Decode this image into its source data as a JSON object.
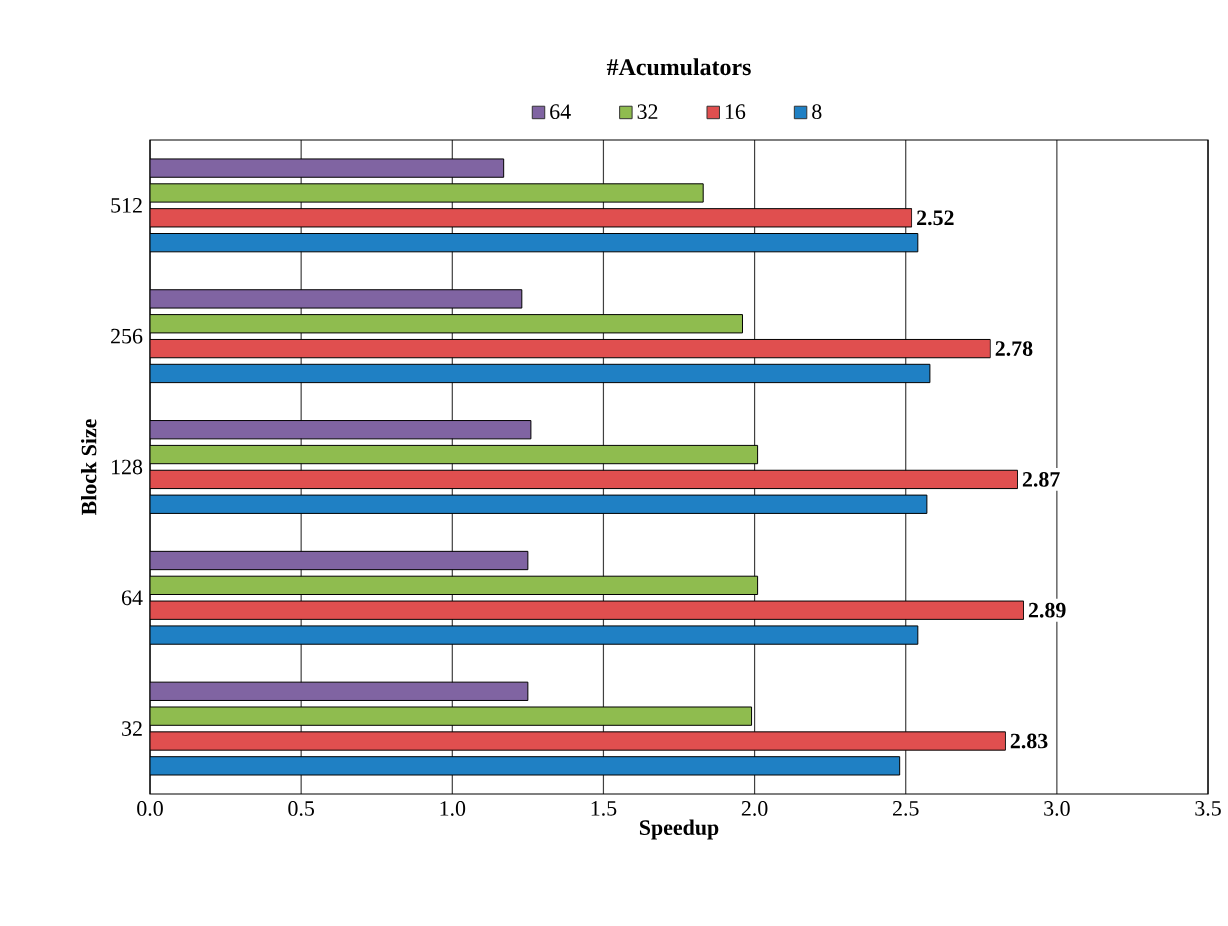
{
  "chart_data": {
    "type": "bar",
    "orientation": "horizontal",
    "legend_title": "#Acumulators",
    "xlabel": "Speedup",
    "ylabel": "Block Size",
    "categories": [
      "512",
      "256",
      "128",
      "64",
      "32"
    ],
    "series": [
      {
        "name": "64",
        "color": "#8064a2",
        "values": [
          1.17,
          1.23,
          1.26,
          1.25,
          1.25
        ]
      },
      {
        "name": "32",
        "color": "#8fbc4f",
        "values": [
          1.83,
          1.96,
          2.01,
          2.01,
          1.99
        ]
      },
      {
        "name": "16",
        "color": "#e04f4f",
        "values": [
          2.52,
          2.78,
          2.87,
          2.89,
          2.83
        ],
        "value_labels": [
          "2.52",
          "2.78",
          "2.87",
          "2.89",
          "2.83"
        ]
      },
      {
        "name": "8",
        "color": "#1f80c4",
        "values": [
          2.54,
          2.58,
          2.57,
          2.54,
          2.48
        ]
      }
    ],
    "xlim": [
      0,
      3.5
    ],
    "xticks": [
      {
        "value": 0,
        "label": "0.0"
      },
      {
        "value": 0.5,
        "label": "0.5"
      },
      {
        "value": 1,
        "label": "1.0"
      },
      {
        "value": 1.5,
        "label": "1.5"
      },
      {
        "value": 2,
        "label": "2.0"
      },
      {
        "value": 2.5,
        "label": "2.5"
      },
      {
        "value": 3,
        "label": "3.0"
      },
      {
        "value": 3.5,
        "label": "3.5"
      }
    ],
    "grid": "x",
    "legend": "top"
  }
}
